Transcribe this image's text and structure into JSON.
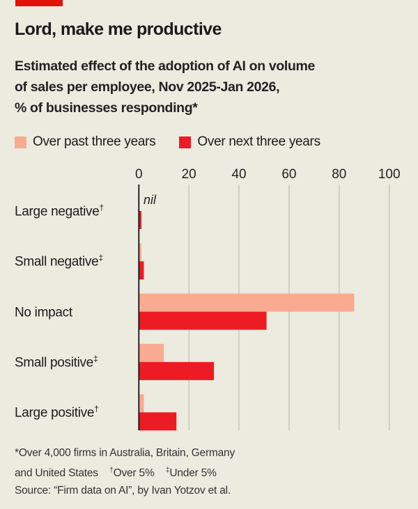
{
  "title": "Lord, make me productive",
  "subtitle": [
    "Estimated effect of the adoption of AI on volume",
    "of sales per employee, Nov 2025-Jan 2026,",
    "% of businesses responding*"
  ],
  "colors": {
    "past": "#f9ab91",
    "next": "#ed1c24",
    "background": "#ecebe0",
    "accent": "#e3120b"
  },
  "chart_data": {
    "type": "bar",
    "orientation": "horizontal",
    "categories": [
      "Large negative",
      "Small negative",
      "No impact",
      "Small positive",
      "Large positive"
    ],
    "category_marks": [
      "†",
      "‡",
      "",
      "‡",
      "†"
    ],
    "series": [
      {
        "name": "Over past three years",
        "values": [
          0,
          1,
          86,
          10,
          2
        ]
      },
      {
        "name": "Over next three years",
        "values": [
          1,
          2,
          51,
          30,
          15
        ]
      }
    ],
    "xlim": [
      0,
      100
    ],
    "xticks": [
      "0",
      "20",
      "40",
      "60",
      "80",
      "100"
    ],
    "annotation": "nil",
    "grid": true,
    "legend": "top-left"
  },
  "footnotes": {
    "line1": "*Over 4,000 firms in Australia, Britain, Germany",
    "line2_a": "and United States",
    "dagger": "†",
    "line2_b": "Over 5%",
    "ddagger": "‡",
    "line2_c": "Under 5%",
    "source": "Source: “Firm data on AI”, by Ivan Yotzov et al."
  }
}
